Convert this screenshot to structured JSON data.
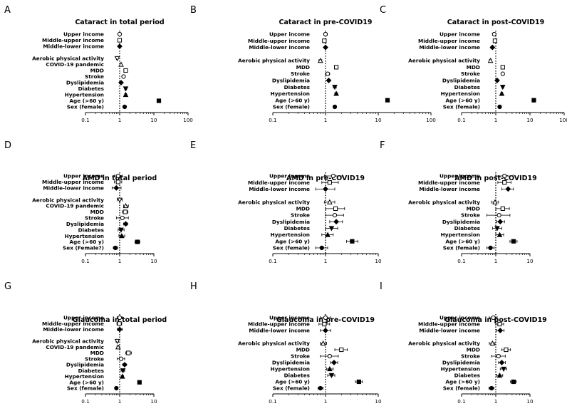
{
  "colors": {
    "ink": "#000000",
    "background": "#ffffff"
  },
  "chart_data": [
    {
      "letter": "A",
      "title": "Cataract in total period",
      "type": "forest",
      "xscale": "log",
      "xlim": [
        0.1,
        100
      ],
      "ticks": [
        "0.1",
        "1",
        "10",
        "100"
      ],
      "ref_line": 1,
      "rows": [
        {
          "label": "Upper income",
          "or": 1.0,
          "lo": 0.95,
          "hi": 1.05,
          "marker": "circle-open"
        },
        {
          "label": "Middle-upper income",
          "or": 1.0,
          "lo": 0.95,
          "hi": 1.05,
          "marker": "square-open"
        },
        {
          "label": "Middle-lower income",
          "or": 1.0,
          "lo": 0.95,
          "hi": 1.05,
          "marker": "diamond"
        },
        {
          "label": "",
          "or": null
        },
        {
          "label": "Aerobic physical activity",
          "or": 0.85,
          "lo": 0.8,
          "hi": 0.9,
          "marker": "triangle-down-open"
        },
        {
          "label": "COVID-19 pandemic",
          "or": 1.1,
          "lo": 1.05,
          "hi": 1.15,
          "marker": "triangle-open"
        },
        {
          "label": "MDD",
          "or": 1.5,
          "lo": 1.4,
          "hi": 1.6,
          "marker": "square-open"
        },
        {
          "label": "Stroke",
          "or": 1.3,
          "lo": 1.2,
          "hi": 1.4,
          "marker": "circle-open"
        },
        {
          "label": "Dyslipidemia",
          "or": 1.1,
          "lo": 1.05,
          "hi": 1.15,
          "marker": "diamond"
        },
        {
          "label": "Diabetes",
          "or": 1.5,
          "lo": 1.4,
          "hi": 1.6,
          "marker": "triangle-down"
        },
        {
          "label": "Hypertension",
          "or": 1.5,
          "lo": 1.4,
          "hi": 1.6,
          "marker": "triangle"
        },
        {
          "label": "Age (>60 y)",
          "or": 14,
          "lo": 13,
          "hi": 15,
          "marker": "square"
        },
        {
          "label": "Sex (female)",
          "or": 1.4,
          "lo": 1.3,
          "hi": 1.5,
          "marker": "circle"
        }
      ]
    },
    {
      "letter": "B",
      "title": "Cataract in pre-COVID19",
      "type": "forest",
      "xscale": "log",
      "xlim": [
        0.1,
        100
      ],
      "ticks": [
        "0.1",
        "1",
        "10",
        "100"
      ],
      "ref_line": 1,
      "rows": [
        {
          "label": "Upper income",
          "or": 1.0,
          "lo": 0.93,
          "hi": 1.08,
          "marker": "circle-open"
        },
        {
          "label": "Middle-upper income",
          "or": 0.95,
          "lo": 0.9,
          "hi": 1.0,
          "marker": "square-open"
        },
        {
          "label": "Middle-lower income",
          "or": 1.0,
          "lo": 0.95,
          "hi": 1.05,
          "marker": "diamond"
        },
        {
          "label": "",
          "or": null
        },
        {
          "label": "Aerobic physical activity",
          "or": 0.8,
          "lo": 0.75,
          "hi": 0.85,
          "marker": "triangle-open"
        },
        {
          "label": "MDD",
          "or": 1.6,
          "lo": 1.5,
          "hi": 1.7,
          "marker": "square-open"
        },
        {
          "label": "Stroke",
          "or": 1.1,
          "lo": 1.0,
          "hi": 1.2,
          "marker": "circle-open"
        },
        {
          "label": "Dyslipidemia",
          "or": 1.15,
          "lo": 1.1,
          "hi": 1.2,
          "marker": "diamond"
        },
        {
          "label": "Diabetes",
          "or": 1.5,
          "lo": 1.4,
          "hi": 1.6,
          "marker": "triangle-down"
        },
        {
          "label": "Hypertension",
          "or": 1.6,
          "lo": 1.5,
          "hi": 1.7,
          "marker": "triangle"
        },
        {
          "label": "Age (>60 y)",
          "or": 15,
          "lo": 14,
          "hi": 16,
          "marker": "square"
        },
        {
          "label": "Sex (female)",
          "or": 1.5,
          "lo": 1.4,
          "hi": 1.6,
          "marker": "circle"
        }
      ]
    },
    {
      "letter": "C",
      "title": "Cataract in post-COVID19",
      "type": "forest",
      "xscale": "log",
      "xlim": [
        0.1,
        100
      ],
      "ticks": [
        "0.1",
        "1",
        "10",
        "100"
      ],
      "ref_line": 1,
      "rows": [
        {
          "label": "Upper income",
          "or": 0.9,
          "lo": 0.8,
          "hi": 1.0,
          "marker": "circle-open"
        },
        {
          "label": "Middle-upper income",
          "or": 0.95,
          "lo": 0.87,
          "hi": 1.05,
          "marker": "square-open"
        },
        {
          "label": "Middle-lower income",
          "or": 0.8,
          "lo": 0.72,
          "hi": 0.88,
          "marker": "diamond"
        },
        {
          "label": "",
          "or": null
        },
        {
          "label": "Aerobic physical activity",
          "or": 0.7,
          "lo": 0.65,
          "hi": 0.75,
          "marker": "triangle-open"
        },
        {
          "label": "MDD",
          "or": 1.6,
          "lo": 1.45,
          "hi": 1.75,
          "marker": "square-open"
        },
        {
          "label": "Stroke",
          "or": 1.6,
          "lo": 1.45,
          "hi": 1.75,
          "marker": "circle-open"
        },
        {
          "label": "Dyslipidemia",
          "or": 1.1,
          "lo": 1.05,
          "hi": 1.15,
          "marker": "diamond"
        },
        {
          "label": "Diabetes",
          "or": 1.6,
          "lo": 1.5,
          "hi": 1.7,
          "marker": "triangle-down"
        },
        {
          "label": "Hypertension",
          "or": 1.5,
          "lo": 1.4,
          "hi": 1.6,
          "marker": "triangle"
        },
        {
          "label": "Age (>60 y)",
          "or": 13,
          "lo": 12,
          "hi": 14,
          "marker": "square"
        },
        {
          "label": "Sex (female)",
          "or": 1.3,
          "lo": 1.2,
          "hi": 1.4,
          "marker": "circle"
        }
      ]
    },
    {
      "letter": "D",
      "title": "AMD in total period",
      "type": "forest",
      "xscale": "log",
      "xlim": [
        0.1,
        10
      ],
      "ticks": [
        "0.1",
        "1",
        "10"
      ],
      "ref_line": 1,
      "rows": [
        {
          "label": "Upper income",
          "or": 0.9,
          "lo": 0.7,
          "hi": 1.2,
          "marker": "circle-open"
        },
        {
          "label": "Middle-upper income",
          "or": 0.9,
          "lo": 0.7,
          "hi": 1.15,
          "marker": "square-open"
        },
        {
          "label": "Middle-lower income",
          "or": 0.8,
          "lo": 0.6,
          "hi": 1.1,
          "marker": "diamond"
        },
        {
          "label": "",
          "or": null
        },
        {
          "label": "Aerobic physical activity",
          "or": 1.0,
          "lo": 0.85,
          "hi": 1.2,
          "marker": "triangle-down-open"
        },
        {
          "label": "COVID-19 pandemic",
          "or": 1.5,
          "lo": 1.3,
          "hi": 1.8,
          "marker": "triangle-open"
        },
        {
          "label": "MDD",
          "or": 1.45,
          "lo": 1.2,
          "hi": 1.75,
          "marker": "square-open"
        },
        {
          "label": "Stroke",
          "or": 1.2,
          "lo": 0.8,
          "hi": 1.8,
          "marker": "circle-open"
        },
        {
          "label": "Dyslipidemia",
          "or": 1.5,
          "lo": 1.3,
          "hi": 1.7,
          "marker": "diamond"
        },
        {
          "label": "Diabetes",
          "or": 1.1,
          "lo": 0.9,
          "hi": 1.35,
          "marker": "triangle-down"
        },
        {
          "label": "Hypertension",
          "or": 1.15,
          "lo": 0.95,
          "hi": 1.4,
          "marker": "triangle"
        },
        {
          "label": "Age (>60 y)",
          "or": 3.3,
          "lo": 2.8,
          "hi": 3.9,
          "marker": "square"
        },
        {
          "label": "Sex (Female?)",
          "or": 0.75,
          "lo": 0.65,
          "hi": 0.87,
          "marker": "circle"
        }
      ]
    },
    {
      "letter": "E",
      "title": "AMD in pre-COVID19",
      "type": "forest",
      "xscale": "log",
      "xlim": [
        0.1,
        10
      ],
      "ticks": [
        "0.1",
        "1",
        "10"
      ],
      "ref_line": 1,
      "rows": [
        {
          "label": "Upper income",
          "or": 1.4,
          "lo": 0.95,
          "hi": 2.1,
          "marker": "circle-open"
        },
        {
          "label": "Middle-upper income",
          "or": 1.2,
          "lo": 0.85,
          "hi": 1.75,
          "marker": "square-open"
        },
        {
          "label": "Middle-lower income",
          "or": 1.0,
          "lo": 0.65,
          "hi": 1.5,
          "marker": "diamond"
        },
        {
          "label": "",
          "or": null
        },
        {
          "label": "Aerobic physical activity",
          "or": 1.2,
          "lo": 0.95,
          "hi": 1.5,
          "marker": "triangle-open"
        },
        {
          "label": "MDD",
          "or": 1.55,
          "lo": 1.0,
          "hi": 2.3,
          "marker": "square-open"
        },
        {
          "label": "Stroke",
          "or": 1.5,
          "lo": 1.0,
          "hi": 2.2,
          "marker": "circle-open"
        },
        {
          "label": "Dyslipidemia",
          "or": 1.6,
          "lo": 1.2,
          "hi": 2.1,
          "marker": "diamond"
        },
        {
          "label": "Diabetes",
          "or": 1.3,
          "lo": 1.0,
          "hi": 1.7,
          "marker": "triangle-down"
        },
        {
          "label": "Hypertension",
          "or": 1.1,
          "lo": 0.85,
          "hi": 1.4,
          "marker": "triangle"
        },
        {
          "label": "Age (>60 y)",
          "or": 3.2,
          "lo": 2.5,
          "hi": 4.1,
          "marker": "square"
        },
        {
          "label": "Sex (female)",
          "or": 0.85,
          "lo": 0.65,
          "hi": 1.1,
          "marker": "circle"
        }
      ]
    },
    {
      "letter": "F",
      "title": "AMD in post-COVID19",
      "type": "forest",
      "xscale": "log",
      "xlim": [
        0.1,
        10
      ],
      "ticks": [
        "0.1",
        "1",
        "10"
      ],
      "ref_line": 1,
      "rows": [
        {
          "label": "Upper income",
          "or": 1.8,
          "lo": 1.0,
          "hi": 3.2,
          "marker": "circle-open"
        },
        {
          "label": "Middle-upper income",
          "or": 1.8,
          "lo": 1.15,
          "hi": 2.8,
          "marker": "square-open"
        },
        {
          "label": "Middle-lower income",
          "or": 2.3,
          "lo": 1.5,
          "hi": 3.3,
          "marker": "diamond"
        },
        {
          "label": "",
          "or": null
        },
        {
          "label": "Aerobic physical activity",
          "or": 0.95,
          "lo": 0.75,
          "hi": 1.2,
          "marker": "triangle-open"
        },
        {
          "label": "MDD",
          "or": 1.6,
          "lo": 1.0,
          "hi": 2.5,
          "marker": "square-open"
        },
        {
          "label": "Stroke",
          "or": 1.25,
          "lo": 0.55,
          "hi": 2.6,
          "marker": "circle-open"
        },
        {
          "label": "Dyslipidemia",
          "or": 1.35,
          "lo": 1.05,
          "hi": 1.8,
          "marker": "diamond"
        },
        {
          "label": "Diabetes",
          "or": 1.1,
          "lo": 0.8,
          "hi": 1.5,
          "marker": "triangle-down"
        },
        {
          "label": "Hypertension",
          "or": 1.3,
          "lo": 1.0,
          "hi": 1.7,
          "marker": "triangle"
        },
        {
          "label": "Age (>60 y)",
          "or": 3.3,
          "lo": 2.6,
          "hi": 4.2,
          "marker": "square"
        },
        {
          "label": "Sex (female)",
          "or": 0.7,
          "lo": 0.55,
          "hi": 0.9,
          "marker": "circle"
        }
      ]
    },
    {
      "letter": "G",
      "title": "Glaucoma in total period",
      "type": "forest",
      "xscale": "log",
      "xlim": [
        0.1,
        10
      ],
      "ticks": [
        "0.1",
        "1",
        "10"
      ],
      "ref_line": 1,
      "rows": [
        {
          "label": "Upper income",
          "or": 1.0,
          "lo": 0.85,
          "hi": 1.2,
          "marker": "circle-open"
        },
        {
          "label": "Middle-upper income",
          "or": 0.98,
          "lo": 0.83,
          "hi": 1.15,
          "marker": "square-open"
        },
        {
          "label": "Middle-lower income",
          "or": 1.0,
          "lo": 0.85,
          "hi": 1.2,
          "marker": "diamond"
        },
        {
          "label": "",
          "or": null
        },
        {
          "label": "Aerobic physical activity",
          "or": 0.85,
          "lo": 0.78,
          "hi": 0.93,
          "marker": "triangle-down-open"
        },
        {
          "label": "COVID-19 pandemic",
          "or": 0.9,
          "lo": 0.83,
          "hi": 0.97,
          "marker": "triangle-open"
        },
        {
          "label": "MDD",
          "or": 1.8,
          "lo": 1.5,
          "hi": 2.2,
          "marker": "square-open"
        },
        {
          "label": "Stroke",
          "or": 1.1,
          "lo": 0.85,
          "hi": 1.4,
          "marker": "circle-open"
        },
        {
          "label": "Dyslipidemia",
          "or": 1.4,
          "lo": 1.25,
          "hi": 1.55,
          "marker": "diamond"
        },
        {
          "label": "Diabetes",
          "or": 1.25,
          "lo": 1.1,
          "hi": 1.4,
          "marker": "triangle-down"
        },
        {
          "label": "Hypertension",
          "or": 1.2,
          "lo": 1.1,
          "hi": 1.3,
          "marker": "triangle"
        },
        {
          "label": "Age (>60 y)",
          "or": 3.8,
          "lo": 3.4,
          "hi": 4.2,
          "marker": "square"
        },
        {
          "label": "Sex (female)",
          "or": 0.8,
          "lo": 0.73,
          "hi": 0.88,
          "marker": "circle"
        }
      ]
    },
    {
      "letter": "H",
      "title": "Glaucoma in pre-COVID19",
      "type": "forest",
      "xscale": "log",
      "xlim": [
        0.1,
        10
      ],
      "ticks": [
        "0.1",
        "1",
        "10"
      ],
      "ref_line": 1,
      "rows": [
        {
          "label": "Upper income",
          "or": 1.0,
          "lo": 0.8,
          "hi": 1.25,
          "marker": "circle-open"
        },
        {
          "label": "Middle-upper income",
          "or": 0.95,
          "lo": 0.75,
          "hi": 1.2,
          "marker": "square-open"
        },
        {
          "label": "Middle-lower income",
          "or": 1.0,
          "lo": 0.8,
          "hi": 1.25,
          "marker": "diamond"
        },
        {
          "label": "",
          "or": null
        },
        {
          "label": "Aerobic physical activity",
          "or": 0.9,
          "lo": 0.8,
          "hi": 1.05,
          "marker": "triangle-open"
        },
        {
          "label": "MDD",
          "or": 2.0,
          "lo": 1.5,
          "hi": 2.6,
          "marker": "square-open"
        },
        {
          "label": "Stroke",
          "or": 1.2,
          "lo": 0.8,
          "hi": 1.75,
          "marker": "circle-open"
        },
        {
          "label": "Dyslipidemia",
          "or": 1.45,
          "lo": 1.25,
          "hi": 1.7,
          "marker": "diamond"
        },
        {
          "label": "Hypertension",
          "or": 1.2,
          "lo": 1.05,
          "hi": 1.4,
          "marker": "triangle"
        },
        {
          "label": "Diabetes",
          "or": 1.3,
          "lo": 1.1,
          "hi": 1.5,
          "marker": "triangle-down"
        },
        {
          "label": "Age (>60 y)",
          "or": 4.3,
          "lo": 3.7,
          "hi": 5.0,
          "marker": "square"
        },
        {
          "label": "Sex (female)",
          "or": 0.8,
          "lo": 0.72,
          "hi": 0.9,
          "marker": "circle"
        }
      ]
    },
    {
      "letter": "I",
      "title": "Glaucoma in post-COVID19",
      "type": "forest",
      "xscale": "log",
      "xlim": [
        0.1,
        10
      ],
      "ticks": [
        "0.1",
        "1",
        "10"
      ],
      "ref_line": 1,
      "rows": [
        {
          "label": "Upper income",
          "or": 0.85,
          "lo": 0.65,
          "hi": 1.1,
          "marker": "circle-open"
        },
        {
          "label": "Middle-upper income",
          "or": 1.3,
          "lo": 1.0,
          "hi": 1.7,
          "marker": "square-open"
        },
        {
          "label": "Middle-lower income",
          "or": 1.35,
          "lo": 1.05,
          "hi": 1.75,
          "marker": "diamond"
        },
        {
          "label": "",
          "or": null
        },
        {
          "label": "Aerobic physical activity",
          "or": 0.8,
          "lo": 0.65,
          "hi": 0.95,
          "marker": "triangle-open"
        },
        {
          "label": "MDD",
          "or": 2.0,
          "lo": 1.5,
          "hi": 2.7,
          "marker": "square-open"
        },
        {
          "label": "Stroke",
          "or": 1.2,
          "lo": 0.75,
          "hi": 1.9,
          "marker": "circle-open"
        },
        {
          "label": "Dyslipidemia",
          "or": 1.5,
          "lo": 1.2,
          "hi": 1.9,
          "marker": "diamond"
        },
        {
          "label": "Hypertension",
          "or": 1.7,
          "lo": 1.35,
          "hi": 2.1,
          "marker": "triangle-down"
        },
        {
          "label": "Diabetes",
          "or": 1.3,
          "lo": 1.05,
          "hi": 1.6,
          "marker": "triangle"
        },
        {
          "label": "Age (>60 y)",
          "or": 3.3,
          "lo": 2.7,
          "hi": 4.0,
          "marker": "square"
        },
        {
          "label": "Sex (female)",
          "or": 0.75,
          "lo": 0.63,
          "hi": 0.88,
          "marker": "circle"
        }
      ]
    }
  ]
}
